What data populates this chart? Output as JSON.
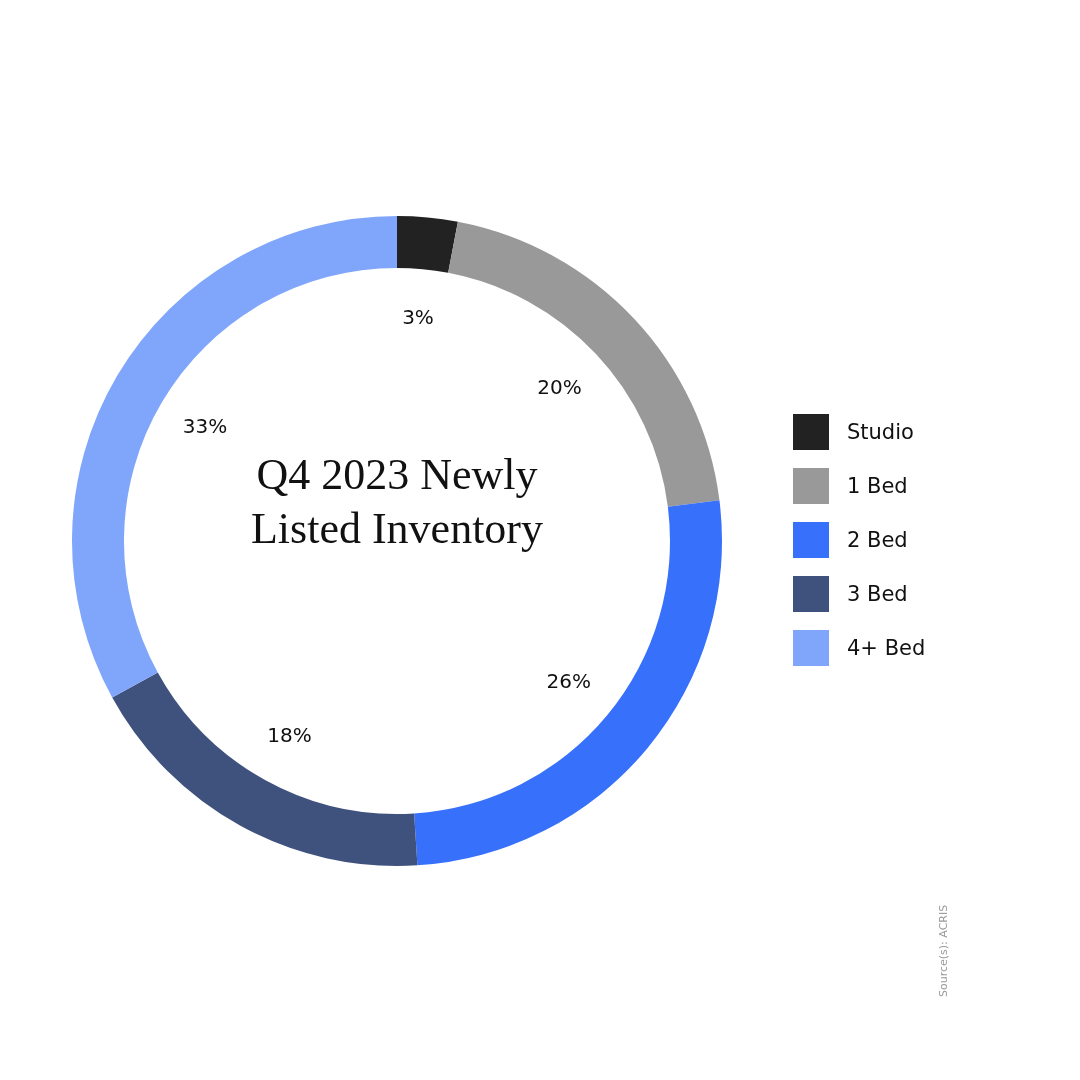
{
  "chart_data": {
    "type": "donut",
    "title": "Q4 2023 Newly Listed Inventory",
    "categories": [
      "Studio",
      "1 Bed",
      "2 Bed",
      "3 Bed",
      "4+ Bed"
    ],
    "values": [
      3,
      20,
      26,
      18,
      33
    ],
    "value_labels": [
      "3%",
      "20%",
      "26%",
      "18%",
      "33%"
    ],
    "colors": [
      "#222222",
      "#999999",
      "#3670fb",
      "#3f527e",
      "#80a6fc"
    ],
    "legend": "right",
    "annotations": [
      "Source(s): ACRIS"
    ]
  }
}
